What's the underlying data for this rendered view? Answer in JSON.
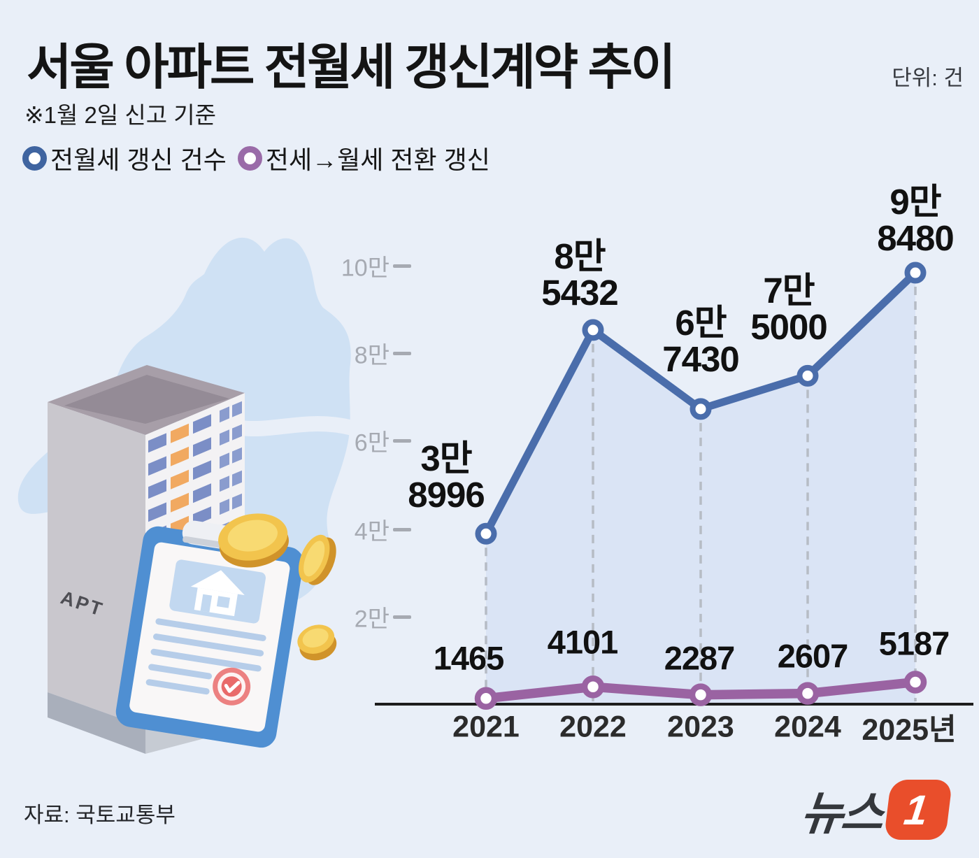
{
  "header": {
    "title": "서울 아파트 전월세 갱신계약 추이",
    "unit_label": "단위: 건",
    "note": "※1월 2일 신고 기준"
  },
  "legend": [
    {
      "label": "전월세 갱신 건수",
      "color": "#3f64a0"
    },
    {
      "label": "전세→월세 전환 갱신",
      "color": "#9a6ba8"
    }
  ],
  "illustration": {
    "apt_label": "APT"
  },
  "chart_data": {
    "type": "line",
    "x": [
      "2021",
      "2022",
      "2023",
      "2024",
      "2025년"
    ],
    "series": [
      {
        "name": "전월세 갱신 건수",
        "color": "#4a6dab",
        "values": [
          38996,
          85432,
          67430,
          75000,
          98480
        ],
        "labels": [
          [
            "3만",
            "8996"
          ],
          [
            "8만",
            "5432"
          ],
          [
            "6만",
            "7430"
          ],
          [
            "7만",
            "5000"
          ],
          [
            "9만",
            "8480"
          ]
        ]
      },
      {
        "name": "전세→월세 전환 갱신",
        "color": "#9a63a2",
        "values": [
          1465,
          4101,
          2287,
          2607,
          5187
        ],
        "labels": [
          "1465",
          "4101",
          "2287",
          "2607",
          "5187"
        ]
      }
    ],
    "y_ticks": [
      "10만",
      "8만",
      "6만",
      "4만",
      "2만"
    ],
    "y_tick_values": [
      100000,
      80000,
      60000,
      40000,
      20000
    ],
    "ylim": [
      0,
      110000
    ],
    "grid": "dashed-vertical-per-point",
    "legend_position": "top-left",
    "area_fill_under_main_series": true,
    "colors": {
      "background": "#e9eff8",
      "area_fill": "#c7d8f1",
      "dashed_guide": "#b6bcc5",
      "axis_line": "#1d1d1d",
      "tick_text": "#a6aab2"
    }
  },
  "footer": {
    "source": "자료: 국토교통부",
    "logo_text": "뉴스",
    "logo_badge": "1"
  }
}
